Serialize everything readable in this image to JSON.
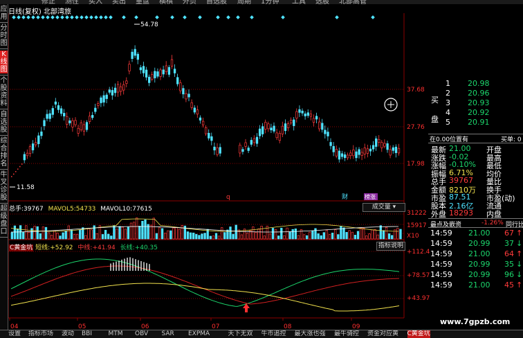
{
  "top_menu": [
    "修正",
    "测性",
    "买入",
    "卖出",
    "量盘",
    "横棋",
    "外页",
    "自选股",
    "周期",
    "1分钟",
    "工具",
    "选股",
    "北部高管"
  ],
  "left_tabs": [
    "应用",
    "分时图",
    "K线图",
    "个股资料",
    "自选股",
    "综合排名",
    "牛叉诊股",
    "超级盘口"
  ],
  "active_left_tab": "K线图",
  "title": "日线(复权) 北部湾旅",
  "main": {
    "high_label": "54.78",
    "low_label": "11.58",
    "price_ticks": [
      "37.68",
      "27.76",
      "17.98"
    ],
    "markers": [
      "q",
      "财",
      "榜涨"
    ]
  },
  "volume": {
    "label": "总手:",
    "value": "39767",
    "ma5_label": "MAVOL5:",
    "ma5_value": "54733",
    "ma10_label": "MAVOL10:",
    "ma10_value": "77615",
    "dropdown": "成交量",
    "ticks": [
      "31222",
      "15917",
      "X10"
    ]
  },
  "indicator": {
    "name": "C黄金坑",
    "short_label": "短线:",
    "short_value": "+52.92",
    "mid_label": "中线:",
    "mid_value": "+41.94",
    "long_label": "长线:",
    "long_value": "+40.35",
    "button": "指标说明",
    "ticks": [
      "+112.4",
      "+78.57",
      "+43.97"
    ]
  },
  "x_axis": [
    "04",
    "05",
    "06",
    "07",
    "08",
    "09"
  ],
  "quote": {
    "sell_partial": "",
    "bid_label": "买",
    "bid_label2": "盘",
    "bids": [
      {
        "n": "1",
        "price": "20.98"
      },
      {
        "n": "2",
        "price": "20.96"
      },
      {
        "n": "3",
        "price": "20.93"
      },
      {
        "n": "4",
        "price": "20.92"
      },
      {
        "n": "5",
        "price": "20.91"
      }
    ],
    "status_left": "在0.00位置有",
    "status_right": "买单: 0",
    "stats": [
      {
        "k1": "最新",
        "v1": "21.00",
        "k2": "开盘"
      },
      {
        "k1": "涨跌",
        "v1": "-0.02",
        "k2": "最高"
      },
      {
        "k1": "涨幅",
        "v1": "-0.10%",
        "k2": "最低"
      },
      {
        "k1": "振幅",
        "v1": "6.71%",
        "k2": "均价"
      },
      {
        "k1": "总手",
        "v1": "39767",
        "k2": "量比"
      },
      {
        "k1": "金额",
        "v1": "8210万",
        "k2": "换手"
      },
      {
        "k1": "市盈",
        "v1": "87.51",
        "k2": "市盈(动)"
      },
      {
        "k1": "股本",
        "v1": "2.16亿",
        "k2": "流通"
      },
      {
        "k1": "外盘",
        "v1": "18293",
        "k2": "内盘"
      }
    ],
    "tab_left": "最点及嵌资",
    "tab_value": "-1.26%",
    "tab_right": "同行比",
    "ticks": [
      {
        "time": "14:59",
        "price": "21.00",
        "vol": "67",
        "dir": "up"
      },
      {
        "time": "14:59",
        "price": "20.99",
        "vol": "37",
        "dir": "down"
      },
      {
        "time": "14:59",
        "price": "21.00",
        "vol": "64",
        "dir": "up"
      },
      {
        "time": "14:59",
        "price": "20.99",
        "vol": "35",
        "dir": "down"
      },
      {
        "time": "14:59",
        "price": "20.99",
        "vol": "96",
        "dir": "down"
      },
      {
        "time": "14:59",
        "price": "21.00",
        "vol": "45",
        "dir": "up"
      }
    ]
  },
  "bottom_tabs": [
    "设置",
    "指标市场",
    "波动",
    "BBI",
    "MTM",
    "OBV",
    "SAR",
    "EXPMA",
    "天下无双",
    "牛市追控",
    "最大涨也强",
    "最牛骑控",
    "资金对应黄",
    "C黄金坑"
  ],
  "active_bottom_tab": "C黄金坑",
  "watermark": "www.7gpzb.com",
  "colors": {
    "up": "#ff3b3b",
    "down": "#4fe3ff",
    "short": "#f2e24d",
    "mid": "#d22020",
    "long": "#1cd66c"
  }
}
